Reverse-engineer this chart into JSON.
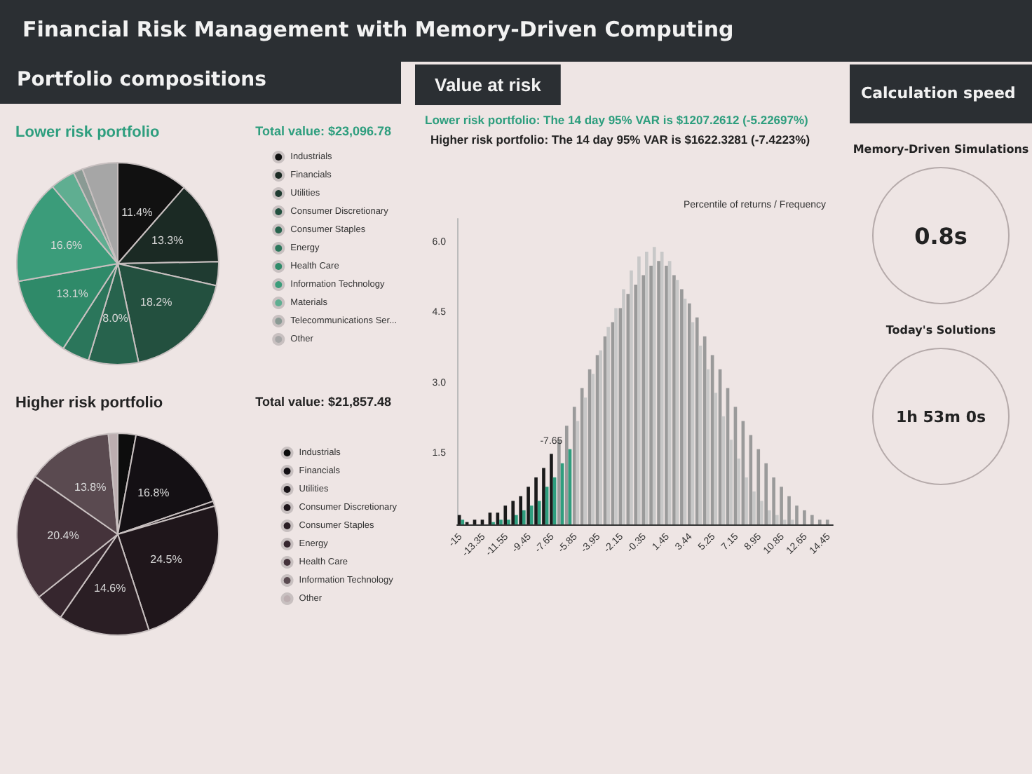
{
  "chart_data": [
    {
      "type": "other",
      "title": "Financial Risk Management with Memory-Driven Computing",
      "annotations": [
        "Portfolio compositions"
      ]
    },
    {
      "type": "pie",
      "title": "Lower risk portfolio",
      "annotations": [
        "Total value: $23,096.78"
      ],
      "legend": "right",
      "categories": [
        "Industrials",
        "Financials",
        "Utilities",
        "Consumer Discretionary",
        "Consumer Staples",
        "Energy",
        "Health Care",
        "Information Technology",
        "Materials",
        "Telecommunications Ser...",
        "Other"
      ],
      "values": [
        11.4,
        13.3,
        3.8,
        18.2,
        8.0,
        4.4,
        13.1,
        16.6,
        4.0,
        1.5,
        5.7
      ],
      "value_labels": [
        "11.4%",
        "13.3%",
        null,
        "18.2%",
        "8.0%",
        null,
        "13.1%",
        "16.6%",
        null,
        null,
        null
      ],
      "colors": [
        "#111111",
        "#1b2a24",
        "#1f3b31",
        "#23503f",
        "#27634d",
        "#2b765b",
        "#2f8a69",
        "#3b9c7a",
        "#5fae91",
        "#8a9a94",
        "#a6a6a6"
      ]
    },
    {
      "type": "pie",
      "title": "Higher risk portfolio",
      "annotations": [
        "Total value: $21,857.48"
      ],
      "legend": "right",
      "categories": [
        "Industrials",
        "Financials",
        "Utilities",
        "Consumer Discretionary",
        "Consumer Staples",
        "Energy",
        "Health Care",
        "Information Technology",
        "Other"
      ],
      "values": [
        2.9,
        16.8,
        0.8,
        24.5,
        14.6,
        4.7,
        20.4,
        13.8,
        1.5
      ],
      "value_labels": [
        null,
        "16.8%",
        null,
        "24.5%",
        "14.6%",
        null,
        "20.4%",
        "13.8%",
        null
      ],
      "colors": [
        "#0d0d0d",
        "#141014",
        "#1a1418",
        "#1f161b",
        "#2a1e24",
        "#36262e",
        "#45333b",
        "#5a4a50",
        "#bcaeb0"
      ]
    },
    {
      "type": "bar",
      "title": "Value at risk",
      "subtitle": "Lower risk portfolio: The 14 day 95% VAR is $1207.2612 (-5.22697%)",
      "annotations": [
        "Higher risk portfolio: The 14 day 95% VAR is $1622.3281 (-7.4223%)",
        "Percentile of returns / Frequency",
        {
          "text": "-7.65",
          "x": "-7.65",
          "y": 1.5
        }
      ],
      "categories": [
        "-15",
        null,
        null,
        "-13.35",
        null,
        null,
        "-11.55",
        null,
        null,
        "-9.45",
        null,
        null,
        "-7.65",
        null,
        null,
        "-5.85",
        null,
        null,
        "-3.95",
        null,
        null,
        "-2.15",
        null,
        null,
        "-0.35",
        null,
        null,
        "1.45",
        null,
        null,
        "3.44",
        null,
        null,
        "5.25",
        null,
        null,
        "7.15",
        null,
        null,
        "8.95",
        null,
        null,
        "10.85",
        null,
        null,
        "12.65",
        null,
        null,
        "14.45"
      ],
      "ylim": [
        0,
        6.5
      ],
      "yticks": [
        {
          "value": 1.5,
          "label": "1.5"
        },
        {
          "value": 3,
          "label": "3.0"
        },
        {
          "value": 4.5,
          "label": "4.5"
        },
        {
          "value": 6,
          "label": "6.0"
        }
      ],
      "series": [
        {
          "values": [
            0.2,
            0.05,
            0.1,
            0.1,
            0.25,
            0.25,
            0.4,
            0.5,
            0.6,
            0.8,
            1.0,
            1.2,
            1.5,
            1.8,
            2.1,
            2.5,
            2.9,
            3.3,
            3.6,
            4.0,
            4.3,
            4.6,
            4.9,
            5.1,
            5.3,
            5.5,
            5.6,
            5.5,
            5.3,
            5.0,
            4.7,
            4.4,
            4.0,
            3.6,
            3.3,
            2.9,
            2.5,
            2.2,
            1.9,
            1.6,
            1.3,
            1.0,
            0.8,
            0.6,
            0.4,
            0.3,
            0.2,
            0.1,
            0.1
          ],
          "colors": [
            "#1a1a1a",
            "#1a1a1a",
            "#1a1a1a",
            "#1a1a1a",
            "#1a1a1a",
            "#1a1a1a",
            "#1a1a1a",
            "#1a1a1a",
            "#1a1a1a",
            "#1a1a1a",
            "#1a1a1a",
            "#1a1a1a",
            "#1a1a1a",
            "#9a9a9a",
            "#9a9a9a",
            "#9a9a9a",
            "#9a9a9a",
            "#9a9a9a",
            "#9a9a9a",
            "#9a9a9a",
            "#9a9a9a",
            "#9a9a9a",
            "#9a9a9a",
            "#9a9a9a",
            "#9a9a9a",
            "#9a9a9a",
            "#9a9a9a",
            "#9a9a9a",
            "#9a9a9a",
            "#9a9a9a",
            "#9a9a9a",
            "#9a9a9a",
            "#9a9a9a",
            "#9a9a9a",
            "#9a9a9a",
            "#9a9a9a",
            "#9a9a9a",
            "#9a9a9a",
            "#9a9a9a",
            "#9a9a9a",
            "#9a9a9a",
            "#9a9a9a",
            "#9a9a9a",
            "#9a9a9a",
            "#9a9a9a",
            "#9a9a9a",
            "#9a9a9a",
            "#9a9a9a",
            "#9a9a9a"
          ]
        },
        {
          "values": [
            0.1,
            0,
            0,
            0,
            0.05,
            0.1,
            0.1,
            0.2,
            0.3,
            0.4,
            0.5,
            0.8,
            1.0,
            1.3,
            1.6,
            2.2,
            2.7,
            3.2,
            3.7,
            4.2,
            4.6,
            5.0,
            5.4,
            5.7,
            5.8,
            5.9,
            5.8,
            5.6,
            5.2,
            4.8,
            4.3,
            3.8,
            3.3,
            2.8,
            2.3,
            1.8,
            1.4,
            1.0,
            0.7,
            0.5,
            0.3,
            0.2,
            0.1,
            0.1,
            0,
            0,
            0,
            0,
            0
          ],
          "colors": [
            "#2e9e7e",
            "#2e9e7e",
            "#2e9e7e",
            "#2e9e7e",
            "#2e9e7e",
            "#2e9e7e",
            "#2e9e7e",
            "#2e9e7e",
            "#2e9e7e",
            "#2e9e7e",
            "#2e9e7e",
            "#2e9e7e",
            "#2e9e7e",
            "#2e9e7e",
            "#2e9e7e",
            "#c8c8c8",
            "#c8c8c8",
            "#c8c8c8",
            "#c8c8c8",
            "#c8c8c8",
            "#c8c8c8",
            "#c8c8c8",
            "#c8c8c8",
            "#c8c8c8",
            "#c8c8c8",
            "#c8c8c8",
            "#c8c8c8",
            "#c8c8c8",
            "#c8c8c8",
            "#c8c8c8",
            "#c8c8c8",
            "#c8c8c8",
            "#c8c8c8",
            "#c8c8c8",
            "#c8c8c8",
            "#c8c8c8",
            "#c8c8c8",
            "#c8c8c8",
            "#c8c8c8",
            "#c8c8c8",
            "#c8c8c8",
            "#c8c8c8",
            "#c8c8c8",
            "#c8c8c8",
            "#c8c8c8",
            "#c8c8c8",
            "#c8c8c8",
            "#c8c8c8",
            "#c8c8c8"
          ]
        }
      ]
    },
    {
      "type": "other",
      "title": "Calculation speed",
      "annotations": [
        "Memory-Driven Simulations",
        "0.8s",
        "Today's Solutions",
        "1h 53m 0s"
      ]
    }
  ]
}
